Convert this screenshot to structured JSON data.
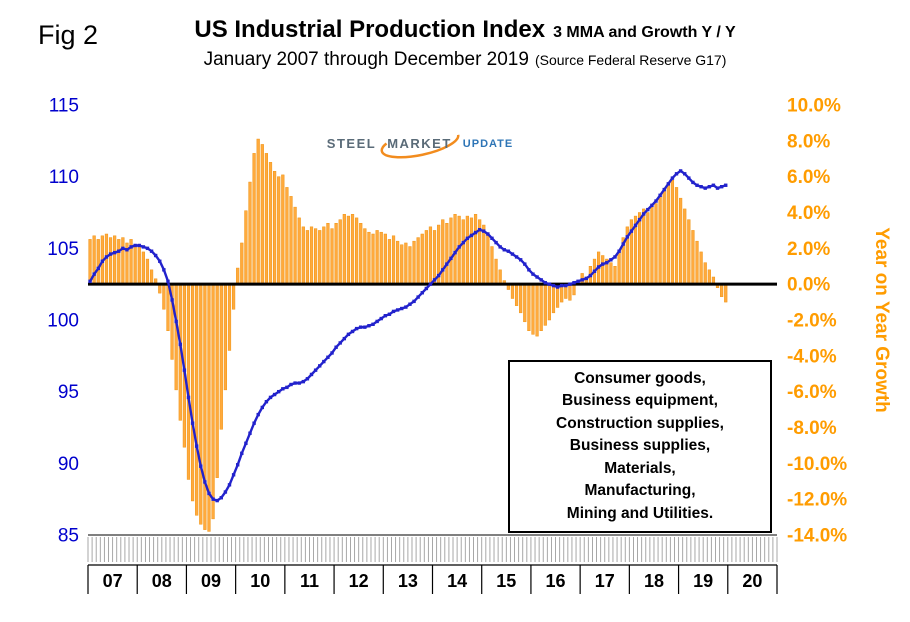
{
  "header": {
    "fig_label": "Fig 2",
    "title_main": "US Industrial Production Index",
    "title_suffix": "3 MMA and Growth Y / Y",
    "subtitle_main": "January 2007 through December 2019",
    "subtitle_source": "(Source Federal Reserve G17)"
  },
  "logo": {
    "steel": "STEEL",
    "market": "MARKET",
    "update": "UPDATE",
    "swoosh_color": "#f28c1e"
  },
  "annotation": {
    "lines": [
      "Consumer goods,",
      "Business equipment,",
      "Construction supplies,",
      "Business supplies,",
      "Materials,",
      "Manufacturing,",
      "Mining and Utilities."
    ]
  },
  "chart_data": {
    "type": "combo",
    "title": "US Industrial Production Index 3 MMA and Growth Y / Y",
    "subtitle": "January 2007 through December 2019",
    "source": "Federal Reserve G17",
    "x_domain": {
      "start_year": 2007,
      "months_total": 168,
      "data_months": 156
    },
    "year_labels": [
      "07",
      "08",
      "09",
      "10",
      "11",
      "12",
      "13",
      "14",
      "15",
      "16",
      "17",
      "18",
      "19",
      "20"
    ],
    "left_axis": {
      "min": 85,
      "max": 115,
      "step": 5,
      "ticks": [
        115,
        110,
        105,
        100,
        95,
        90,
        85
      ],
      "color": "#0000cd"
    },
    "right_axis": {
      "min": -14,
      "max": 10,
      "step": 2,
      "tick_labels": [
        "10.0%",
        "8.0%",
        "6.0%",
        "4.0%",
        "2.0%",
        "0.0%",
        "-2.0%",
        "-4.0%",
        "-6.0%",
        "-8.0%",
        "-10.0%",
        "-12.0%",
        "-14.0%"
      ],
      "title": "Year on Year Growth",
      "color": "#ff9c00"
    },
    "zero_line_value": 0,
    "series": [
      {
        "name": "Industrial Production Index 3 MMA",
        "type": "line",
        "axis": "left",
        "color": "#2222cc",
        "values": [
          102.7,
          103.2,
          103.6,
          104.1,
          104.4,
          104.6,
          104.7,
          104.8,
          105.0,
          104.9,
          105.1,
          105.2,
          105.2,
          105.1,
          105.0,
          104.8,
          104.5,
          104.1,
          103.5,
          102.7,
          101.4,
          99.9,
          98.3,
          96.5,
          94.6,
          92.8,
          91.2,
          89.8,
          88.7,
          87.9,
          87.5,
          87.4,
          87.6,
          88.0,
          88.5,
          89.2,
          89.9,
          90.7,
          91.4,
          92.1,
          92.8,
          93.4,
          93.9,
          94.3,
          94.6,
          94.8,
          95.0,
          95.2,
          95.3,
          95.5,
          95.6,
          95.6,
          95.7,
          95.9,
          96.2,
          96.5,
          96.8,
          97.1,
          97.4,
          97.7,
          98.1,
          98.4,
          98.7,
          99.0,
          99.2,
          99.4,
          99.5,
          99.5,
          99.6,
          99.7,
          99.9,
          100.1,
          100.3,
          100.4,
          100.6,
          100.7,
          100.8,
          100.9,
          101.1,
          101.3,
          101.6,
          101.9,
          102.2,
          102.5,
          102.8,
          103.1,
          103.5,
          103.9,
          104.3,
          104.7,
          105.1,
          105.4,
          105.7,
          105.9,
          106.1,
          106.3,
          106.2,
          106.0,
          105.7,
          105.4,
          105.1,
          104.9,
          104.8,
          104.6,
          104.4,
          104.2,
          103.9,
          103.5,
          103.2,
          103.0,
          102.8,
          102.6,
          102.5,
          102.4,
          102.3,
          102.4,
          102.4,
          102.5,
          102.6,
          102.7,
          102.8,
          102.9,
          103.1,
          103.4,
          103.7,
          103.9,
          104.0,
          104.2,
          104.4,
          104.8,
          105.3,
          105.8,
          106.2,
          106.6,
          107.0,
          107.4,
          107.7,
          108.0,
          108.3,
          108.7,
          109.1,
          109.5,
          109.9,
          110.2,
          110.4,
          110.2,
          109.9,
          109.6,
          109.4,
          109.3,
          109.2,
          109.3,
          109.4,
          109.2,
          109.3,
          109.4
        ]
      },
      {
        "name": "Growth Y/Y",
        "type": "bar",
        "axis": "right",
        "color": "#ffaa3d",
        "edge_color": "#ef9414",
        "values": [
          2.5,
          2.7,
          2.5,
          2.7,
          2.8,
          2.6,
          2.7,
          2.5,
          2.6,
          2.3,
          2.5,
          2.1,
          2.2,
          1.8,
          1.4,
          0.8,
          0.3,
          -0.5,
          -1.4,
          -2.6,
          -4.2,
          -5.9,
          -7.6,
          -9.1,
          -10.9,
          -12.1,
          -12.9,
          -13.4,
          -13.7,
          -13.8,
          -13.1,
          -10.8,
          -8.1,
          -5.9,
          -3.7,
          -1.4,
          0.9,
          2.3,
          4.1,
          5.7,
          7.3,
          8.1,
          7.8,
          7.3,
          6.8,
          6.3,
          6.0,
          6.1,
          5.4,
          4.9,
          4.3,
          3.7,
          3.2,
          3.0,
          3.2,
          3.1,
          3.0,
          3.2,
          3.4,
          3.1,
          3.4,
          3.6,
          3.9,
          3.8,
          3.9,
          3.7,
          3.4,
          3.1,
          2.9,
          2.8,
          3.0,
          2.9,
          2.8,
          2.5,
          2.7,
          2.4,
          2.2,
          2.3,
          2.1,
          2.4,
          2.6,
          2.8,
          3.0,
          3.2,
          3.0,
          3.3,
          3.6,
          3.4,
          3.7,
          3.9,
          3.8,
          3.6,
          3.8,
          3.7,
          3.9,
          3.6,
          3.3,
          2.8,
          2.1,
          1.4,
          0.8,
          0.2,
          -0.3,
          -0.8,
          -1.2,
          -1.6,
          -2.1,
          -2.6,
          -2.8,
          -2.9,
          -2.6,
          -2.3,
          -2.0,
          -1.6,
          -1.3,
          -1.0,
          -0.8,
          -0.9,
          -0.6,
          0.2,
          0.6,
          0.4,
          1.0,
          1.4,
          1.8,
          1.6,
          1.4,
          1.2,
          1.0,
          1.8,
          2.6,
          3.2,
          3.6,
          3.8,
          4.0,
          4.2,
          4.0,
          4.3,
          4.5,
          4.9,
          5.3,
          5.6,
          5.8,
          5.4,
          4.8,
          4.2,
          3.6,
          3.0,
          2.4,
          1.8,
          1.2,
          0.8,
          0.4,
          -0.2,
          -0.7,
          -1.0
        ]
      }
    ]
  }
}
